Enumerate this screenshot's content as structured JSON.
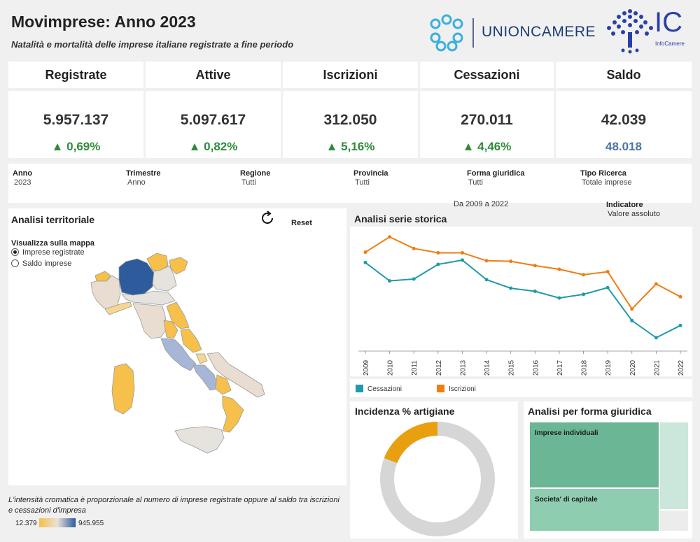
{
  "header": {
    "title": "Movimprese: Anno 2023",
    "subtitle": "Natalità e mortalità delle imprese italiane registrate a fine periodo",
    "logo_unioncamere": "UNIONCAMERE",
    "logo_ic": "IC",
    "logo_ic_sub": "InfoCamere"
  },
  "kpis": [
    {
      "label": "Registrate",
      "value": "5.957.137",
      "delta": "▲ 0,69%"
    },
    {
      "label": "Attive",
      "value": "5.097.617",
      "delta": "▲ 0,82%"
    },
    {
      "label": "Iscrizioni",
      "value": "312.050",
      "delta": "▲ 5,16%"
    },
    {
      "label": "Cessazioni",
      "value": "270.011",
      "delta": "▲ 4,46%"
    },
    {
      "label": "Saldo",
      "value": "42.039",
      "delta": "48.018"
    }
  ],
  "filters": [
    {
      "label": "Anno",
      "value": "2023"
    },
    {
      "label": "Trimestre",
      "value": "Anno"
    },
    {
      "label": "Regione",
      "value": "Tutti"
    },
    {
      "label": "Provincia",
      "value": "Tutti"
    },
    {
      "label": "Forma giuridica",
      "value": "Tutti"
    },
    {
      "label": "Tipo Ricerca",
      "value": "Totale imprese"
    }
  ],
  "range_text": "Da 2009 a 2022",
  "indicator": {
    "label": "Indicatore",
    "value": "Valore assoluto"
  },
  "territorial": {
    "title": "Analisi territoriale",
    "reset_label": "Reset",
    "map_label": "Visualizza sulla mappa",
    "options": [
      "Imprese registrate",
      "Saldo imprese"
    ],
    "selected": "Imprese registrate",
    "note": "L'intensità cromatica è proporzionale al numero di imprese registrate oppure al saldo tra iscrizioni e cessazioni d'impresa",
    "legend_min": "12.379",
    "legend_max": "945.955",
    "colors": {
      "low": "#f6c04a",
      "mid": "#e8e0d8",
      "high": "#2d5b9c"
    }
  },
  "timeseries": {
    "title": "Analisi serie storica",
    "legend": [
      "Cessazioni",
      "Iscrizioni"
    ]
  },
  "artigiane": {
    "title": "Incidenza % artigiane",
    "share": 0.19,
    "colors": {
      "share": "#e8a010",
      "rest": "#d6d6d6"
    }
  },
  "forma_giuridica": {
    "title": "Analisi per forma giuridica",
    "labels": [
      "Imprese individuali",
      "Societa' di capitale"
    ]
  },
  "chart_data": {
    "type": "line",
    "x": [
      "2009",
      "2010",
      "2011",
      "2012",
      "2013",
      "2014",
      "2015",
      "2016",
      "2017",
      "2018",
      "2019",
      "2020",
      "2021",
      "2022"
    ],
    "series": [
      {
        "name": "Iscrizioni",
        "color": "#f07d12",
        "values": [
          385000,
          410000,
          391000,
          384000,
          384000,
          371000,
          370000,
          363000,
          357000,
          348000,
          353000,
          292000,
          333000,
          312000
        ]
      },
      {
        "name": "Cessazioni",
        "color": "#1f9aa8",
        "values": [
          368000,
          338000,
          341000,
          365000,
          372000,
          340000,
          326000,
          321000,
          310000,
          316000,
          327000,
          273000,
          245000,
          265000
        ]
      }
    ],
    "ylim": [
      230000,
      420000
    ],
    "grid": false,
    "legend": "bottom-left"
  }
}
